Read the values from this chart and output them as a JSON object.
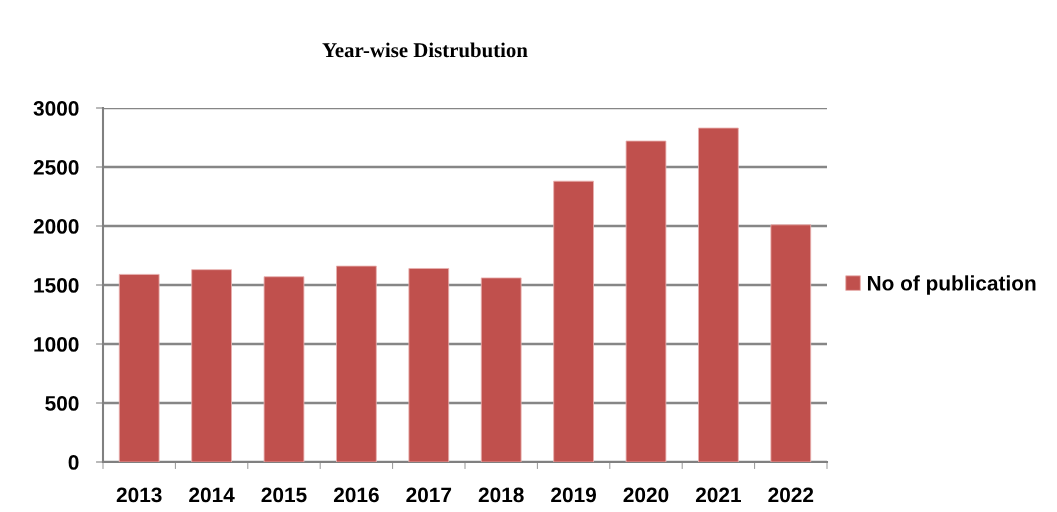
{
  "chart_data": {
    "type": "bar",
    "title": "Year-wise Distrubution",
    "categories": [
      "2013",
      "2014",
      "2015",
      "2016",
      "2017",
      "2018",
      "2019",
      "2020",
      "2021",
      "2022"
    ],
    "series": [
      {
        "name": "No of publication",
        "color": "#c0504d",
        "values": [
          1590,
          1630,
          1570,
          1660,
          1640,
          1560,
          2380,
          2720,
          2830,
          2010
        ]
      }
    ],
    "ylim": [
      0,
      3000
    ],
    "yticks": [
      0,
      500,
      1000,
      1500,
      2000,
      2500,
      3000
    ],
    "grid": "y",
    "legend": "right"
  }
}
